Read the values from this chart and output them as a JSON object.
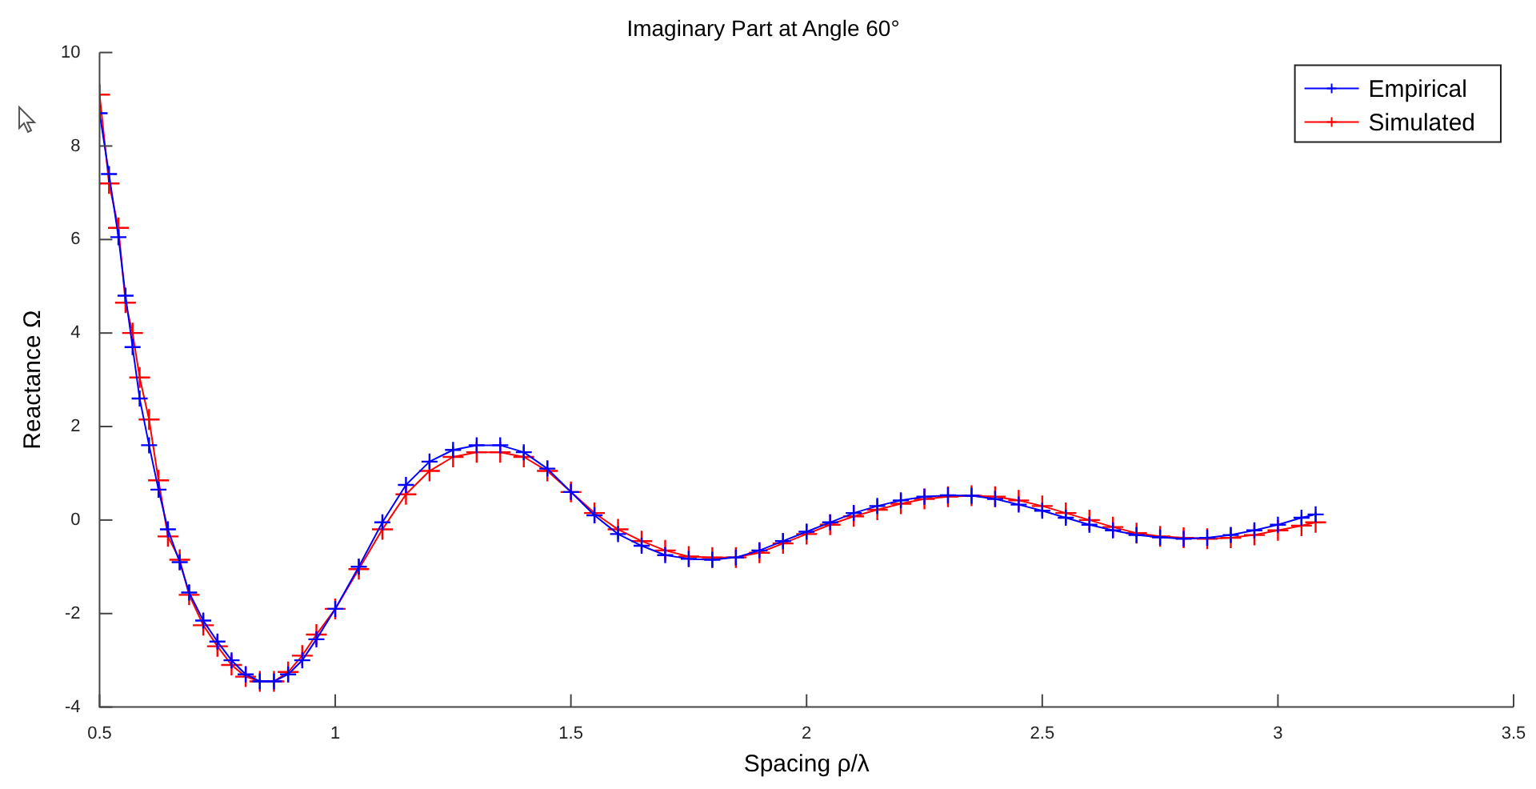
{
  "chart_data": {
    "type": "line",
    "title": "Imaginary Part at Angle 60°",
    "xlabel": "Spacing ρ/λ",
    "ylabel": "Reactance Ω",
    "x": [
      0.5,
      0.52,
      0.54,
      0.555,
      0.57,
      0.585,
      0.605,
      0.625,
      0.645,
      0.67,
      0.69,
      0.72,
      0.75,
      0.78,
      0.81,
      0.84,
      0.87,
      0.9,
      0.93,
      0.96,
      1.0,
      1.05,
      1.1,
      1.15,
      1.2,
      1.25,
      1.3,
      1.35,
      1.4,
      1.45,
      1.5,
      1.55,
      1.6,
      1.65,
      1.7,
      1.75,
      1.8,
      1.85,
      1.9,
      1.95,
      2.0,
      2.05,
      2.1,
      2.15,
      2.2,
      2.25,
      2.3,
      2.35,
      2.4,
      2.45,
      2.5,
      2.55,
      2.6,
      2.65,
      2.7,
      2.75,
      2.8,
      2.85,
      2.9,
      2.95,
      3.0,
      3.05,
      3.08
    ],
    "series": [
      {
        "name": "Empirical",
        "color": "#0000ff",
        "values": [
          8.7,
          7.4,
          6.05,
          4.8,
          3.7,
          2.6,
          1.6,
          0.65,
          -0.2,
          -0.9,
          -1.55,
          -2.15,
          -2.6,
          -3.0,
          -3.3,
          -3.45,
          -3.45,
          -3.3,
          -3.0,
          -2.55,
          -1.9,
          -1.0,
          -0.05,
          0.75,
          1.25,
          1.5,
          1.6,
          1.6,
          1.45,
          1.1,
          0.6,
          0.1,
          -0.3,
          -0.55,
          -0.75,
          -0.83,
          -0.85,
          -0.8,
          -0.65,
          -0.45,
          -0.25,
          -0.05,
          0.15,
          0.3,
          0.42,
          0.5,
          0.53,
          0.52,
          0.45,
          0.33,
          0.2,
          0.05,
          -0.1,
          -0.22,
          -0.32,
          -0.37,
          -0.4,
          -0.38,
          -0.32,
          -0.22,
          -0.1,
          0.05,
          0.12
        ]
      },
      {
        "name": "Simulated",
        "color": "#ff0000",
        "values": [
          9.1,
          7.2,
          6.25,
          4.65,
          4.0,
          3.05,
          2.15,
          0.85,
          -0.35,
          -0.85,
          -1.6,
          -2.25,
          -2.7,
          -3.1,
          -3.35,
          -3.45,
          -3.45,
          -3.25,
          -2.9,
          -2.45,
          -1.9,
          -1.05,
          -0.2,
          0.55,
          1.05,
          1.35,
          1.45,
          1.45,
          1.35,
          1.05,
          0.6,
          0.15,
          -0.2,
          -0.45,
          -0.65,
          -0.78,
          -0.8,
          -0.8,
          -0.7,
          -0.5,
          -0.3,
          -0.1,
          0.08,
          0.22,
          0.35,
          0.45,
          0.5,
          0.52,
          0.5,
          0.42,
          0.3,
          0.15,
          0.0,
          -0.15,
          -0.28,
          -0.35,
          -0.38,
          -0.4,
          -0.38,
          -0.32,
          -0.22,
          -0.12,
          -0.05
        ]
      }
    ],
    "xlim": [
      0.5,
      3.5
    ],
    "xticks": [
      0.5,
      1,
      1.5,
      2,
      2.5,
      3,
      3.5
    ],
    "ylim": [
      -4,
      10
    ],
    "yticks": [
      -4,
      -2,
      0,
      2,
      4,
      6,
      8,
      10
    ],
    "grid": false,
    "legend": "top right",
    "marker": "cross",
    "line_style": "solid"
  }
}
